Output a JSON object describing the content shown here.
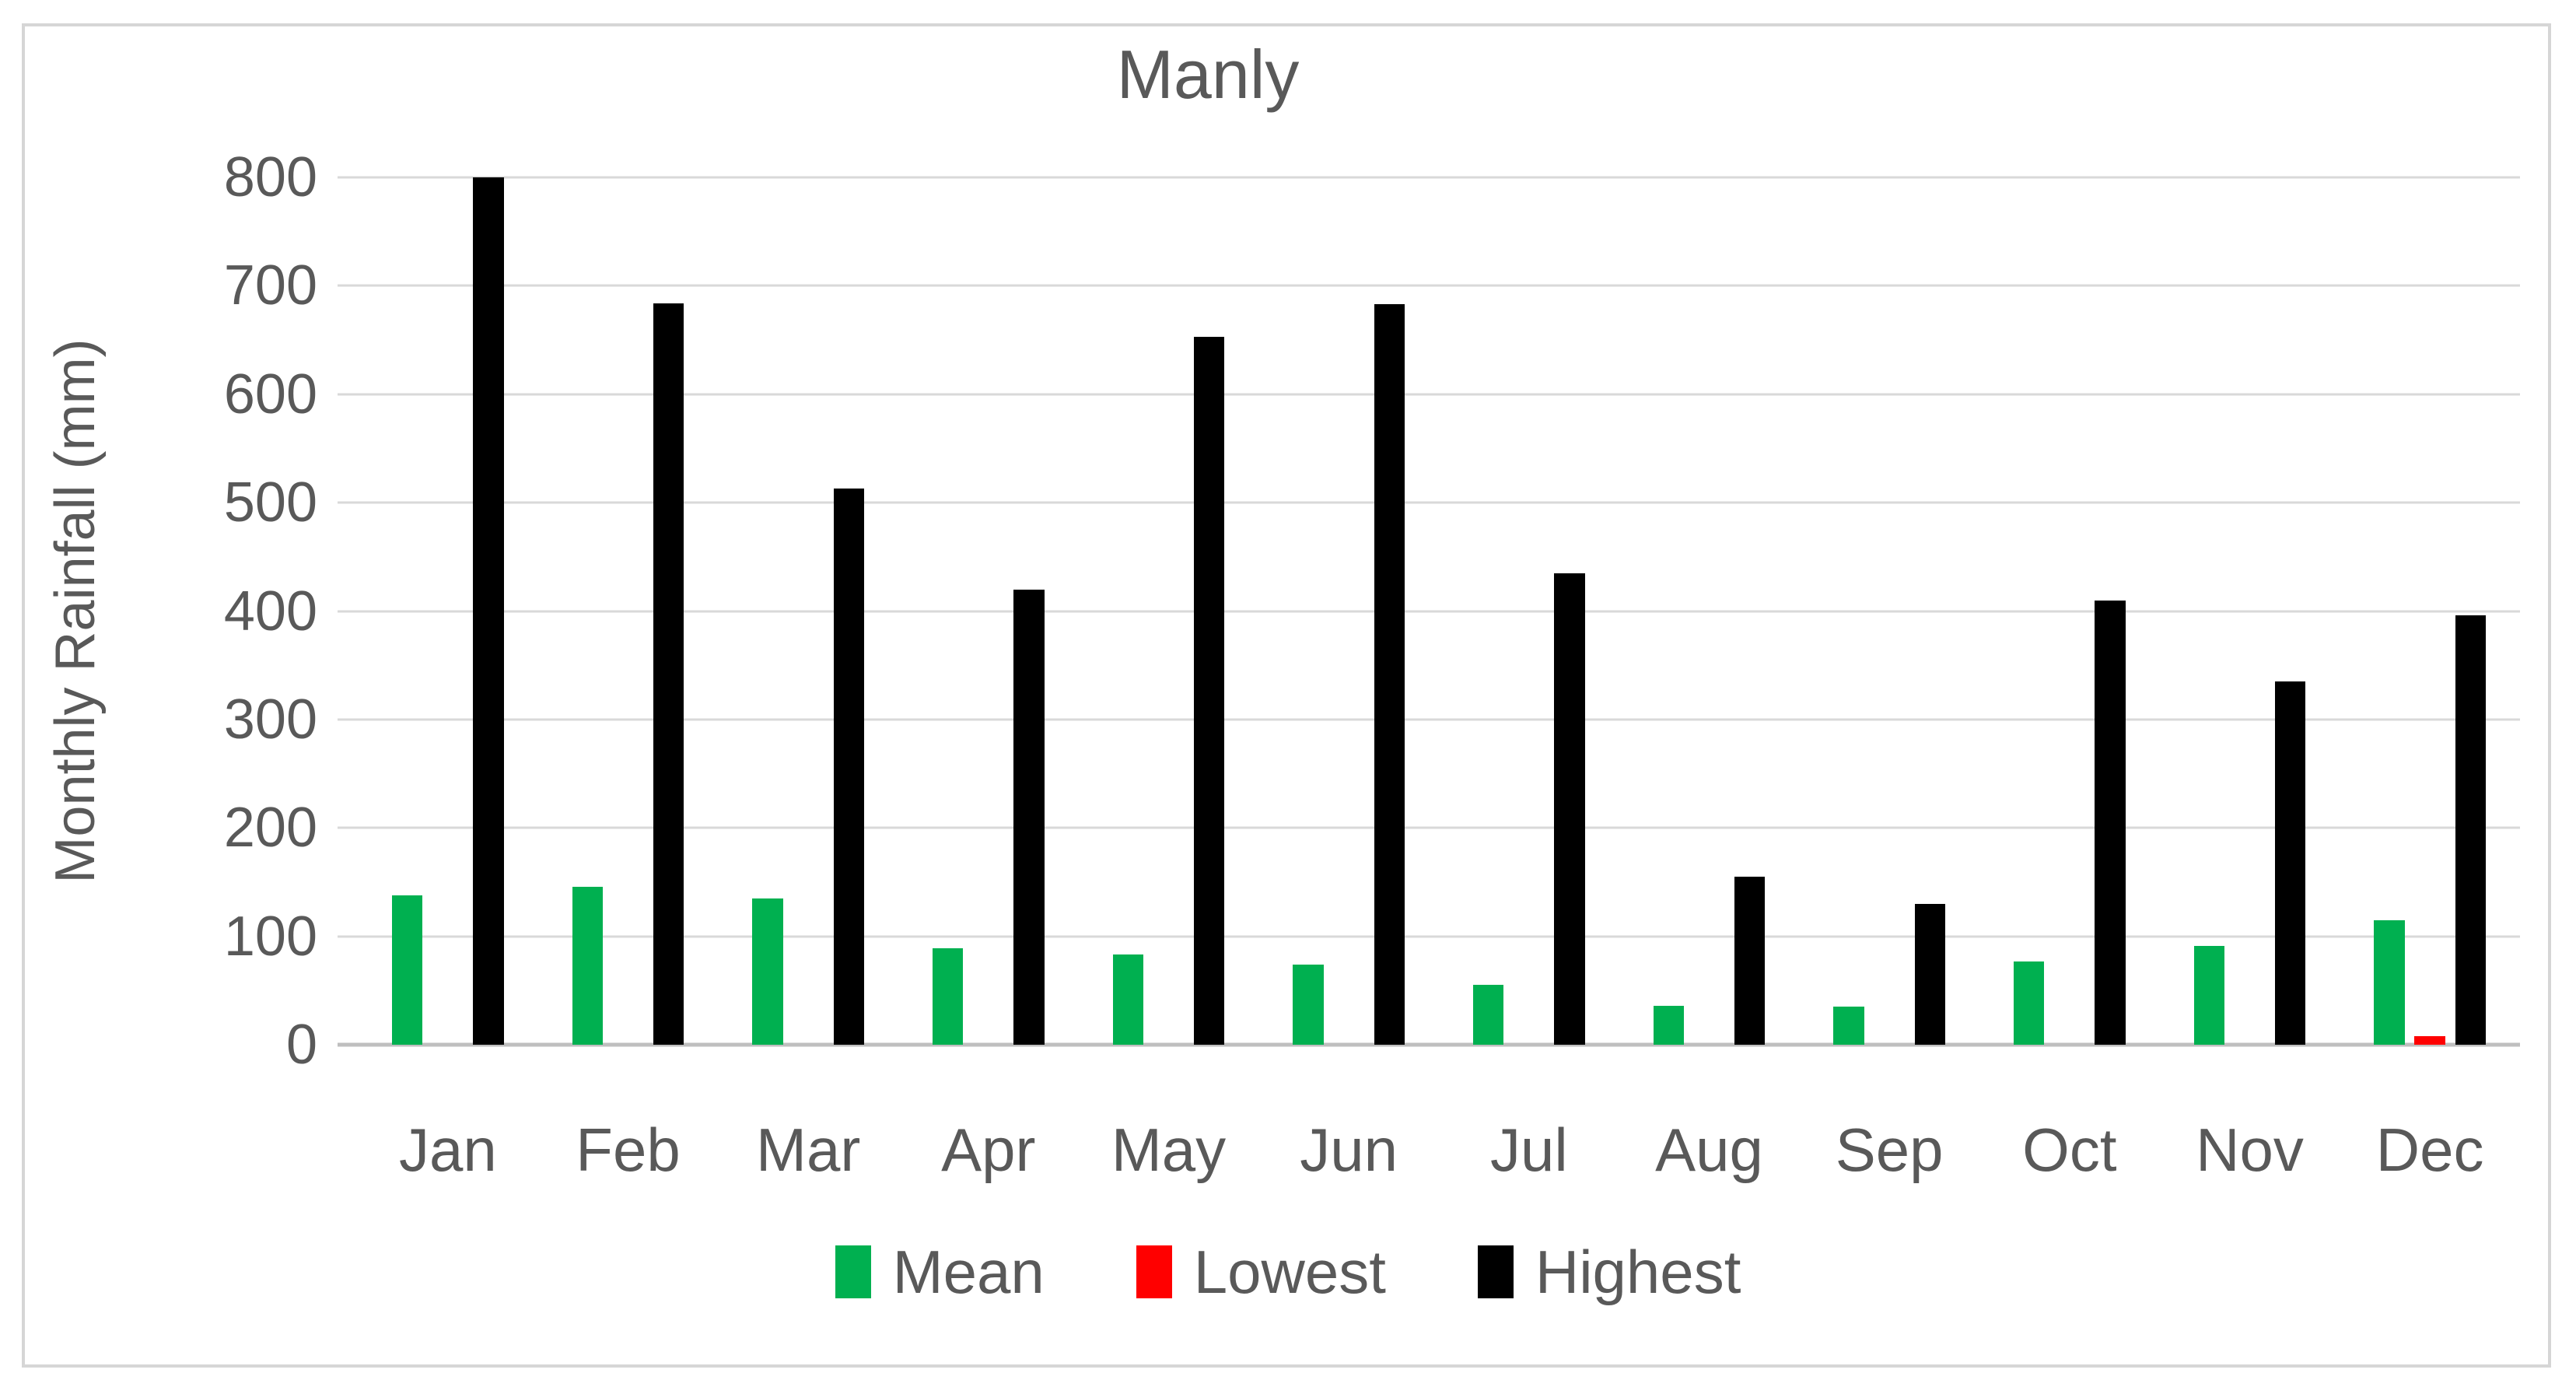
{
  "chart_data": {
    "type": "bar",
    "title": "Manly",
    "ylabel": "Monthly Rainfall (mm)",
    "xlabel": "",
    "categories": [
      "Jan",
      "Feb",
      "Mar",
      "Apr",
      "May",
      "Jun",
      "Jul",
      "Aug",
      "Sep",
      "Oct",
      "Nov",
      "Dec"
    ],
    "series": [
      {
        "name": "Mean",
        "color": "#00B050",
        "values": [
          138,
          146,
          135,
          89,
          83,
          74,
          55,
          36,
          35,
          77,
          91,
          115
        ]
      },
      {
        "name": "Lowest",
        "color": "#FF0000",
        "values": [
          0,
          0,
          0,
          0,
          0,
          0,
          0,
          0,
          0,
          0,
          0,
          8
        ]
      },
      {
        "name": "Highest",
        "color": "#000000",
        "values": [
          800,
          684,
          513,
          420,
          653,
          683,
          435,
          155,
          130,
          410,
          335,
          396
        ]
      }
    ],
    "ylim": [
      0,
      800
    ],
    "yticks": [
      0,
      100,
      200,
      300,
      400,
      500,
      600,
      700,
      800
    ],
    "grid": true,
    "legend_position": "bottom"
  },
  "colors": {
    "text": "#595959",
    "gridline": "#D9D9D9",
    "axis_line": "#BFBFBF",
    "frame_border": "#D6D6D6",
    "background": "#FFFFFF"
  }
}
